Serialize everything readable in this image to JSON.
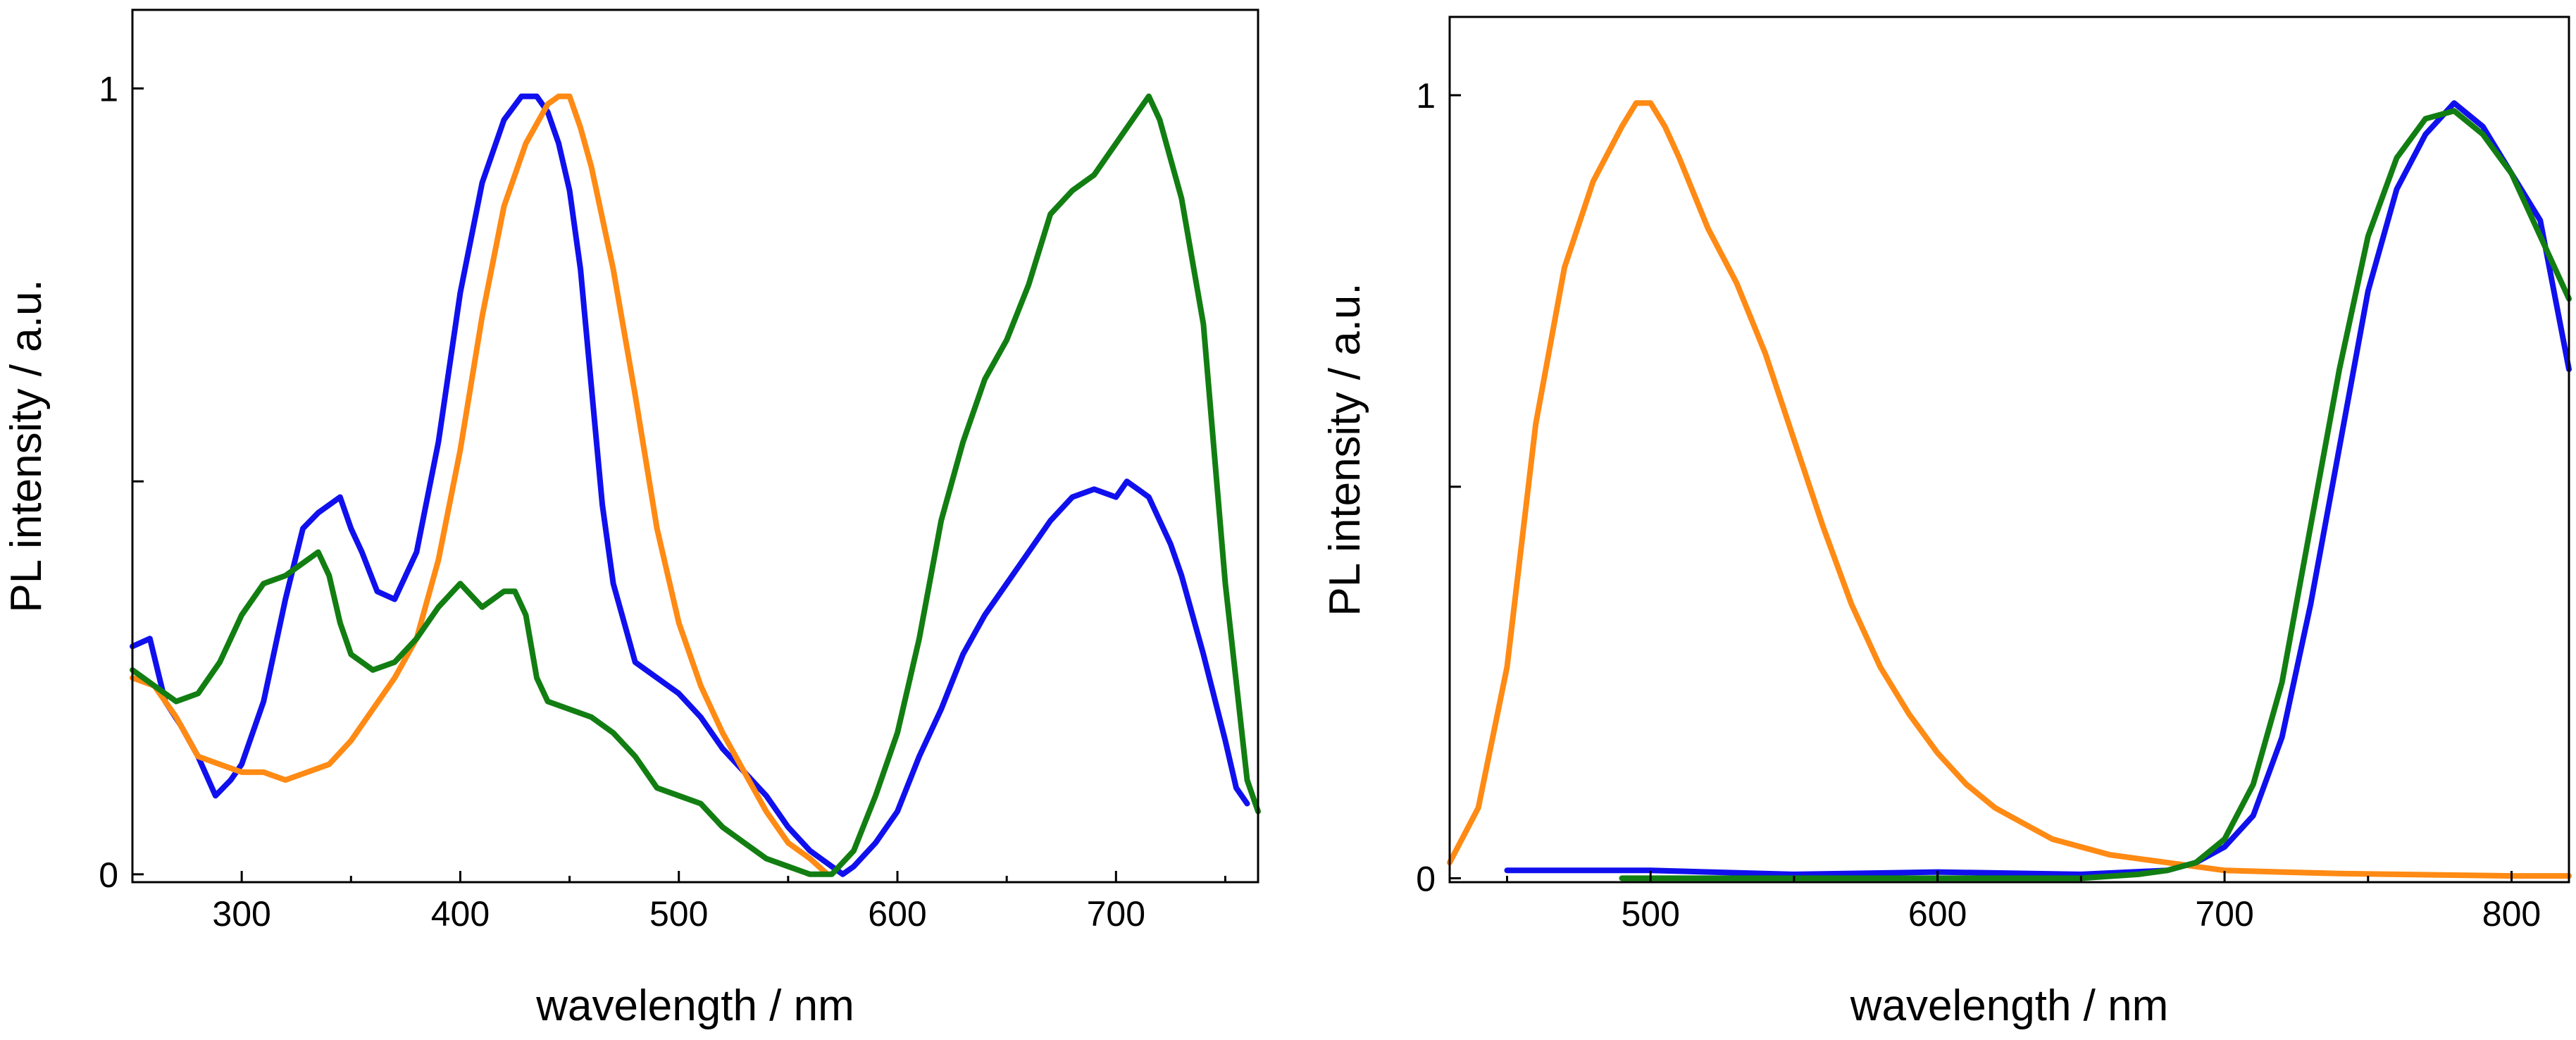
{
  "chart_data": [
    {
      "type": "line",
      "title": "",
      "xlabel": "wavelength / nm",
      "ylabel": "PL intensity / a.u.",
      "xlim": [
        250,
        765
      ],
      "ylim": [
        -0.01,
        1.1
      ],
      "x_ticks": [
        300,
        400,
        500,
        600,
        700
      ],
      "x_tick_labels": [
        "300",
        "400",
        "500",
        "600",
        "700"
      ],
      "y_ticks": [
        0,
        0.5,
        1
      ],
      "y_tick_labels": [
        "0",
        "",
        "1"
      ],
      "series": [
        {
          "name": "blue",
          "color": "#1010ee",
          "x": [
            250,
            258,
            265,
            272,
            280,
            288,
            295,
            300,
            310,
            320,
            328,
            335,
            340,
            345,
            350,
            355,
            362,
            370,
            380,
            390,
            400,
            410,
            420,
            428,
            435,
            440,
            445,
            450,
            455,
            460,
            465,
            470,
            475,
            480,
            490,
            500,
            510,
            520,
            530,
            540,
            550,
            560,
            570,
            575,
            580,
            590,
            600,
            610,
            620,
            630,
            640,
            650,
            660,
            670,
            680,
            690,
            700,
            705,
            710,
            715,
            720,
            725,
            730,
            740,
            750,
            755,
            760
          ],
          "y": [
            0.29,
            0.3,
            0.22,
            0.19,
            0.15,
            0.1,
            0.12,
            0.14,
            0.22,
            0.35,
            0.44,
            0.46,
            0.47,
            0.48,
            0.44,
            0.41,
            0.36,
            0.35,
            0.41,
            0.55,
            0.74,
            0.88,
            0.96,
            0.99,
            0.99,
            0.97,
            0.93,
            0.87,
            0.77,
            0.62,
            0.47,
            0.37,
            0.32,
            0.27,
            0.25,
            0.23,
            0.2,
            0.16,
            0.13,
            0.1,
            0.06,
            0.03,
            0.01,
            0.0,
            0.01,
            0.04,
            0.08,
            0.15,
            0.21,
            0.28,
            0.33,
            0.37,
            0.41,
            0.45,
            0.48,
            0.49,
            0.48,
            0.5,
            0.49,
            0.48,
            0.45,
            0.42,
            0.38,
            0.28,
            0.17,
            0.11,
            0.09
          ]
        },
        {
          "name": "orange",
          "color": "#ff8a14",
          "x": [
            250,
            260,
            270,
            280,
            290,
            300,
            310,
            320,
            330,
            340,
            350,
            360,
            370,
            380,
            390,
            400,
            410,
            420,
            430,
            440,
            445,
            450,
            455,
            460,
            470,
            480,
            490,
            500,
            510,
            520,
            530,
            540,
            550,
            560,
            568
          ],
          "y": [
            0.25,
            0.24,
            0.2,
            0.15,
            0.14,
            0.13,
            0.13,
            0.12,
            0.13,
            0.14,
            0.17,
            0.21,
            0.25,
            0.3,
            0.4,
            0.54,
            0.71,
            0.85,
            0.93,
            0.98,
            0.99,
            0.99,
            0.95,
            0.9,
            0.77,
            0.61,
            0.44,
            0.32,
            0.24,
            0.18,
            0.13,
            0.08,
            0.04,
            0.02,
            0.0
          ]
        },
        {
          "name": "green",
          "color": "#127e12",
          "x": [
            250,
            260,
            270,
            280,
            290,
            300,
            310,
            320,
            330,
            335,
            340,
            345,
            350,
            360,
            370,
            380,
            390,
            400,
            410,
            420,
            425,
            430,
            435,
            440,
            450,
            460,
            470,
            480,
            490,
            500,
            510,
            520,
            530,
            540,
            550,
            560,
            570,
            580,
            590,
            600,
            610,
            620,
            630,
            640,
            650,
            660,
            670,
            680,
            690,
            700,
            710,
            715,
            720,
            725,
            730,
            740,
            750,
            760,
            765
          ],
          "y": [
            0.26,
            0.24,
            0.22,
            0.23,
            0.27,
            0.33,
            0.37,
            0.38,
            0.4,
            0.41,
            0.38,
            0.32,
            0.28,
            0.26,
            0.27,
            0.3,
            0.34,
            0.37,
            0.34,
            0.36,
            0.36,
            0.33,
            0.25,
            0.22,
            0.21,
            0.2,
            0.18,
            0.15,
            0.11,
            0.1,
            0.09,
            0.06,
            0.04,
            0.02,
            0.01,
            0.0,
            0.0,
            0.03,
            0.1,
            0.18,
            0.3,
            0.45,
            0.55,
            0.63,
            0.68,
            0.75,
            0.84,
            0.87,
            0.89,
            0.93,
            0.97,
            0.99,
            0.96,
            0.91,
            0.86,
            0.7,
            0.37,
            0.12,
            0.08
          ]
        }
      ]
    },
    {
      "type": "line",
      "title": "",
      "xlabel": "wavelength / nm",
      "ylabel": "PL intensity / a.u.",
      "xlim": [
        430,
        820
      ],
      "ylim": [
        -0.005,
        1.1
      ],
      "x_ticks": [
        500,
        600,
        700,
        800
      ],
      "x_tick_labels": [
        "500",
        "600",
        "700",
        "800"
      ],
      "y_ticks": [
        0,
        0.5,
        1
      ],
      "y_tick_labels": [
        "0",
        "",
        "1"
      ],
      "series": [
        {
          "name": "orange",
          "color": "#ff8a14",
          "x": [
            430,
            440,
            450,
            460,
            470,
            480,
            490,
            495,
            500,
            505,
            510,
            520,
            530,
            540,
            550,
            560,
            570,
            580,
            590,
            600,
            610,
            620,
            630,
            640,
            650,
            660,
            670,
            680,
            690,
            700,
            720,
            740,
            760,
            780,
            800,
            820
          ],
          "y": [
            0.02,
            0.09,
            0.27,
            0.58,
            0.78,
            0.89,
            0.96,
            0.99,
            0.99,
            0.96,
            0.92,
            0.83,
            0.76,
            0.67,
            0.56,
            0.45,
            0.35,
            0.27,
            0.21,
            0.16,
            0.12,
            0.09,
            0.07,
            0.05,
            0.04,
            0.03,
            0.025,
            0.02,
            0.015,
            0.01,
            0.008,
            0.006,
            0.005,
            0.004,
            0.003,
            0.003
          ]
        },
        {
          "name": "blue",
          "color": "#1010ee",
          "x": [
            450,
            480,
            500,
            550,
            600,
            650,
            680,
            690,
            700,
            710,
            720,
            730,
            740,
            750,
            760,
            770,
            780,
            790,
            800,
            810,
            820
          ],
          "y": [
            0.01,
            0.01,
            0.01,
            0.005,
            0.008,
            0.005,
            0.01,
            0.02,
            0.04,
            0.08,
            0.18,
            0.35,
            0.55,
            0.75,
            0.88,
            0.95,
            0.99,
            0.96,
            0.9,
            0.84,
            0.65
          ]
        },
        {
          "name": "green",
          "color": "#127e12",
          "x": [
            490,
            550,
            600,
            650,
            670,
            680,
            690,
            700,
            710,
            720,
            730,
            740,
            750,
            760,
            770,
            780,
            790,
            800,
            810,
            820
          ],
          "y": [
            0.0,
            0.0,
            0.0,
            0.0,
            0.005,
            0.01,
            0.02,
            0.05,
            0.12,
            0.25,
            0.45,
            0.65,
            0.82,
            0.92,
            0.97,
            0.98,
            0.95,
            0.9,
            0.82,
            0.74
          ]
        }
      ]
    }
  ]
}
